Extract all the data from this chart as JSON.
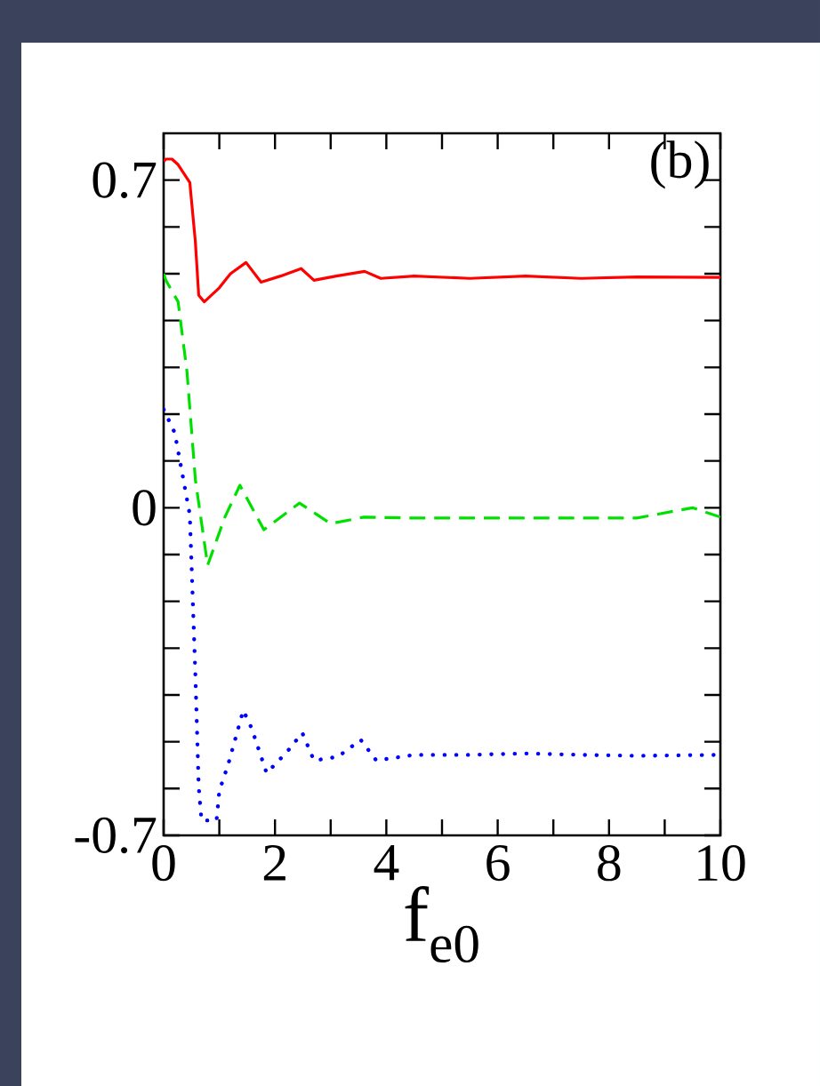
{
  "chart_data": {
    "type": "line",
    "xlabel": "f$_{e0}$",
    "annotations": [
      "(b)"
    ],
    "xlim": [
      0,
      10
    ],
    "ylim": [
      -0.7,
      0.8
    ],
    "xticks": [
      0,
      {
        "value": 1,
        "label": null
      },
      2,
      {
        "value": 3,
        "label": null
      },
      4,
      {
        "value": 5,
        "label": null
      },
      6,
      {
        "value": 7,
        "label": null
      },
      8,
      {
        "value": 9,
        "label": null
      },
      10
    ],
    "yticks": [
      -0.7,
      {
        "value": -0.6,
        "label": null
      },
      {
        "value": -0.5,
        "label": null
      },
      {
        "value": -0.4,
        "label": null
      },
      {
        "value": -0.3,
        "label": null
      },
      {
        "value": -0.2,
        "label": null
      },
      {
        "value": -0.1,
        "label": null
      },
      0,
      {
        "value": 0.1,
        "label": null
      },
      {
        "value": 0.2,
        "label": null
      },
      {
        "value": 0.3,
        "label": null
      },
      {
        "value": 0.4,
        "label": null
      },
      {
        "value": 0.5,
        "label": null
      },
      {
        "value": 0.6,
        "label": null
      },
      0.7
    ],
    "grid": false,
    "series": [
      {
        "color": "#ff0000",
        "line_style": "solid",
        "x": [
          0.0,
          0.04,
          0.15,
          0.26,
          0.47,
          0.57,
          0.63,
          0.73,
          1.0,
          1.2,
          1.48,
          1.75,
          2.1,
          2.47,
          2.7,
          3.1,
          3.61,
          3.9,
          4.5,
          5.5,
          6.5,
          7.5,
          8.5,
          10.0
        ],
        "values": [
          0.74,
          0.745,
          0.745,
          0.733,
          0.695,
          0.568,
          0.454,
          0.44,
          0.47,
          0.5,
          0.524,
          0.482,
          0.495,
          0.511,
          0.486,
          0.495,
          0.505,
          0.49,
          0.495,
          0.49,
          0.495,
          0.49,
          0.493,
          0.492
        ]
      },
      {
        "color": "#00e000",
        "line_style": "dashed",
        "x": [
          0.0,
          0.04,
          0.26,
          0.42,
          0.57,
          0.79,
          1.1,
          1.37,
          1.8,
          2.44,
          3.0,
          3.6,
          4.5,
          5.5,
          6.5,
          7.5,
          8.5,
          9.5,
          10.0
        ],
        "values": [
          0.5,
          0.486,
          0.44,
          0.29,
          0.06,
          -0.123,
          -0.02,
          0.048,
          -0.047,
          0.01,
          -0.034,
          -0.02,
          -0.022,
          -0.022,
          -0.022,
          -0.022,
          -0.022,
          0.0,
          -0.02
        ]
      },
      {
        "color": "#0000ff",
        "line_style": "dotted",
        "x": [
          0.0,
          0.2,
          0.47,
          0.57,
          0.63,
          0.68,
          0.95,
          1.0,
          1.16,
          1.43,
          1.58,
          1.85,
          2.22,
          2.49,
          2.7,
          3.13,
          3.54,
          3.82,
          4.5,
          5.5,
          6.5,
          7.5,
          8.5,
          10.0
        ],
        "values": [
          0.21,
          0.16,
          -0.015,
          -0.357,
          -0.597,
          -0.668,
          -0.668,
          -0.605,
          -0.548,
          -0.433,
          -0.471,
          -0.567,
          -0.521,
          -0.481,
          -0.54,
          -0.532,
          -0.496,
          -0.54,
          -0.528,
          -0.528,
          -0.525,
          -0.528,
          -0.53,
          -0.528
        ]
      }
    ]
  }
}
